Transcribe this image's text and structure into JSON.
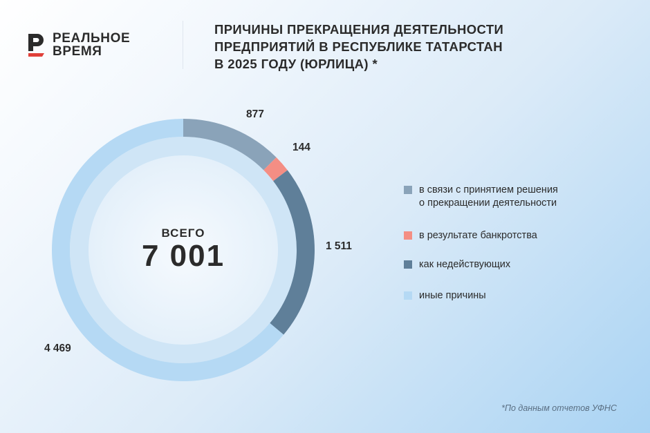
{
  "logo": {
    "line1": "РЕАЛЬНОЕ",
    "line2": "ВРЕМЯ",
    "colors": {
      "dark": "#2b2b2b",
      "red": "#e0403a"
    }
  },
  "title": {
    "line1": "ПРИЧИНЫ ПРЕКРАЩЕНИЯ ДЕЯТЕЛЬНОСТИ",
    "line2": "ПРЕДПРИЯТИЙ В РЕСПУБЛИКЕ ТАТАРСТАН",
    "line3": "В 2025 ГОДУ (ЮРЛИЦА) *"
  },
  "chart_data": {
    "type": "pie",
    "variant": "donut",
    "center_caption": "ВСЕГО",
    "center_value": "7 001",
    "total": 7001,
    "categories": [
      "в связи с принятием решения\nо прекращении деятельности",
      "в результате банкротства",
      "как недействующих",
      "иные причины"
    ],
    "values": [
      877,
      144,
      1511,
      4469
    ],
    "value_labels": [
      "877",
      "144",
      "1 511",
      "4 469"
    ],
    "colors": [
      "#8aa3b9",
      "#f48e84",
      "#5f7f99",
      "#b5d9f4"
    ],
    "legend_position": "right"
  },
  "footnote": "*По данным отчетов УФНС"
}
